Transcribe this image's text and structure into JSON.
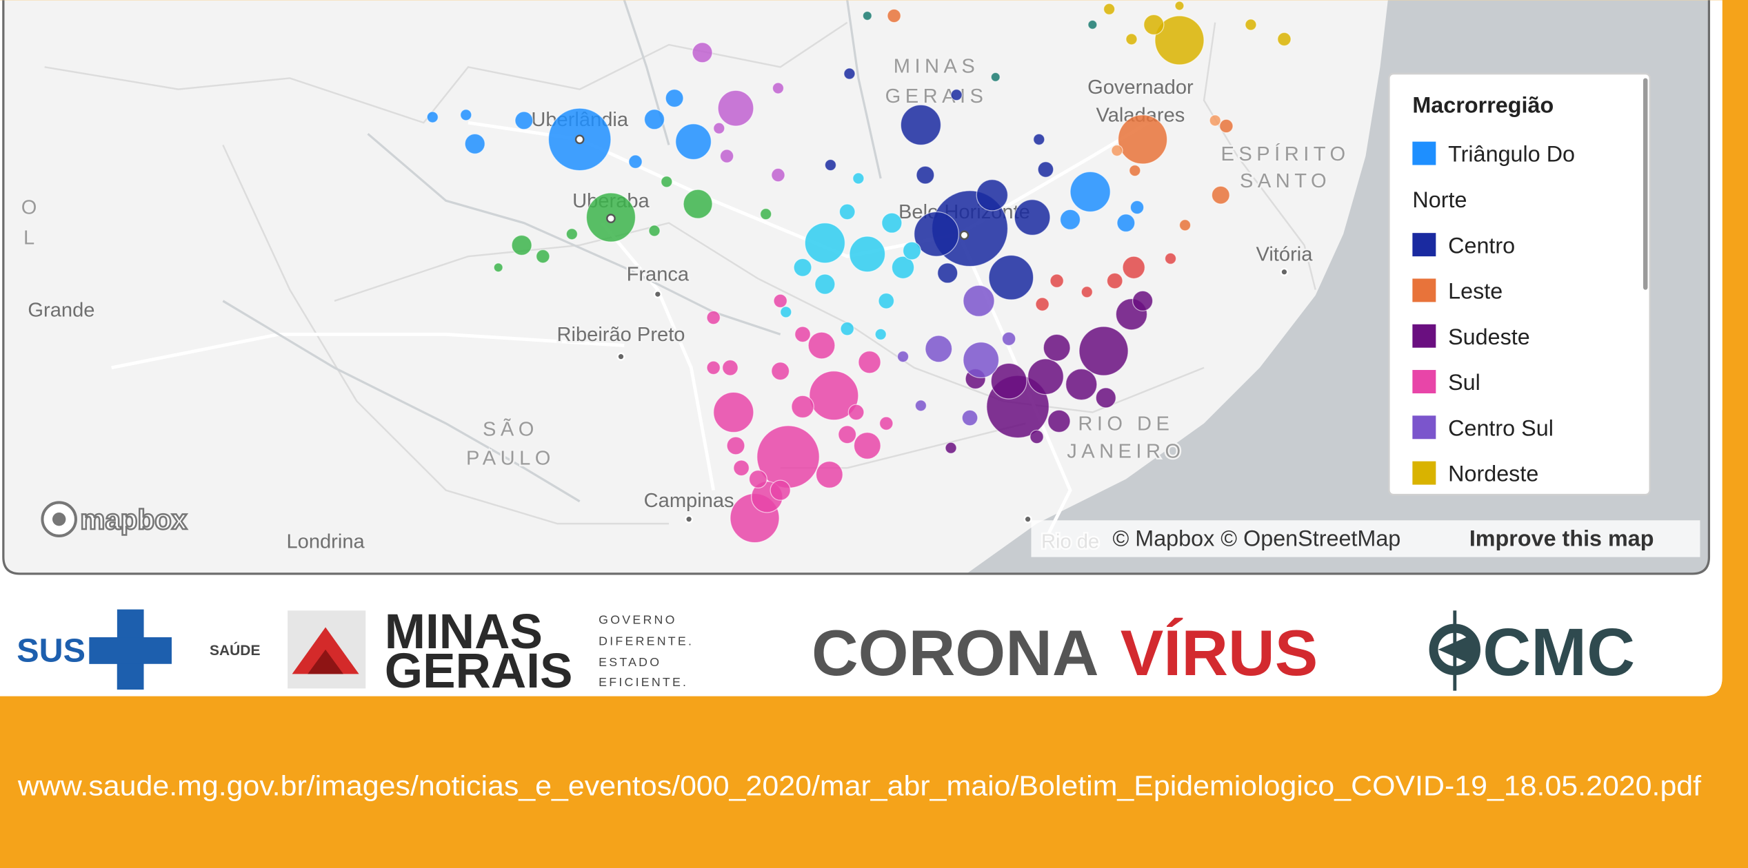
{
  "map": {
    "place_labels": [
      "MINAS",
      "GERAIS",
      "Uberlândia",
      "Uberaba",
      "Franca",
      "Ribeirão Preto",
      "Belo Horizonte",
      "Governador",
      "Valadares",
      "ESPÍRITO",
      "SANTO",
      "Vitória",
      "SÃO",
      "PAULO",
      "Campinas",
      "Londrina",
      "RIO DE",
      "JANEIRO",
      "Grande",
      "O",
      "L",
      "Rio de"
    ],
    "legend": {
      "title": "Macrorregião",
      "items": [
        {
          "name": "Triângulo Do Norte",
          "color": "#1e8fff"
        },
        {
          "name": "Centro",
          "color": "#1a2aa0"
        },
        {
          "name": "Leste",
          "color": "#e8733a"
        },
        {
          "name": "Sudeste",
          "color": "#6a0f80"
        },
        {
          "name": "Sul",
          "color": "#e845a8"
        },
        {
          "name": "Centro Sul",
          "color": "#7b55cc"
        },
        {
          "name": "Nordeste",
          "color": "#d9b300"
        }
      ]
    },
    "logo": "mapbox",
    "attribution": "© Mapbox © OpenStreetMap",
    "improve": "Improve this map"
  },
  "footer": {
    "sus": "SUS",
    "saude": "SAÚDE",
    "minas": "MINAS",
    "gerais": "GERAIS",
    "slogan": [
      "GOVERNO",
      "DIFERENTE.",
      "ESTADO",
      "EFICIENTE."
    ],
    "corona": "CORONA",
    "virus": "VÍRUS",
    "cmc": "CMC",
    "url": "www.saude.mg.gov.br/images/noticias_e_eventos/000_2020/mar_abr_maio/Boletim_Epidemiologico_COVID-19_18.05.2020.pdf"
  }
}
